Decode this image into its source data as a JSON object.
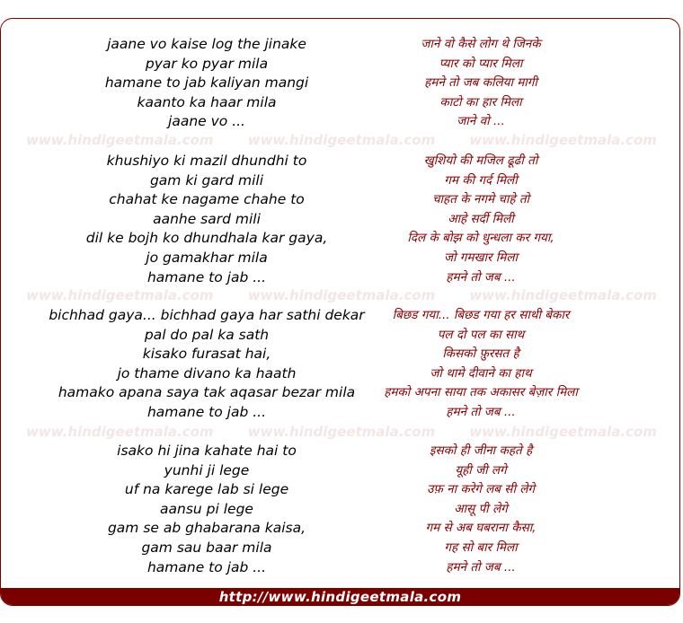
{
  "watermark": "www.hindigeetmala.com",
  "footer_url": "http://www.hindigeetmala.com",
  "colors": {
    "accent": "#7a0000",
    "hindi_text": "#8b0000"
  },
  "stanzas": [
    {
      "roman": [
        "jaane vo kaise log the jinake",
        "pyar ko pyar mila",
        "hamane to jab kaliyan mangi",
        "kaanto ka haar mila",
        "jaane vo ..."
      ],
      "hindi": [
        "जाने वो कैसे लोग थे जिनके",
        "प्यार को प्यार मिला",
        "हमने तो जब कलिया मागी",
        "काटो का हार मिला",
        "जाने वो ..."
      ]
    },
    {
      "roman": [
        "khushiyo ki mazil dhundhi to",
        "gam ki gard mili",
        "chahat ke nagame chahe to",
        "aanhe sard mili",
        "dil ke bojh ko dhundhala kar gaya,",
        "jo gamakhar mila",
        "hamane to jab ..."
      ],
      "hindi": [
        "खुशियो की मजिल ढूढी तो",
        "गम की गर्द मिली",
        "चाहत के नगमे चाहे तो",
        "आहे सर्दी मिली",
        "दिल के बोझ को धुन्धला कर गया,",
        "जो गमखार मिला",
        "हमने तो जब ..."
      ]
    },
    {
      "roman": [
        "bichhad gaya... bichhad gaya har sathi dekar",
        "pal do pal ka sath",
        "kisako furasat hai,",
        "jo thame divano ka haath",
        "hamako apana saya tak aqasar bezar mila",
        "hamane to jab ..."
      ],
      "hindi": [
        "बिछड गया... बिछड गया हर साथी बेकार",
        "पल दो पल का साथ",
        "किसको फ़ुरसत है",
        "जो थामे दीवाने का हाथ",
        "हमको अपना साया तक अकासर बेज़ार मिला",
        "हमने तो जब ..."
      ]
    },
    {
      "roman": [
        "isako hi jina kahate hai to",
        "yunhi ji lege",
        "uf na karege lab si lege",
        "aansu pi lege",
        "gam se ab ghabarana kaisa,",
        "gam sau baar mila",
        "hamane to jab ..."
      ],
      "hindi": [
        "इसको ही जीना कहते है",
        "यूही जी लगे",
        "उफ़ ना करेगे लब सी लेगे",
        "आसू पी लेगे",
        "गम से अब घबराना कैसा,",
        "गह सो बार मिला",
        "हमने तो जब ..."
      ]
    }
  ]
}
